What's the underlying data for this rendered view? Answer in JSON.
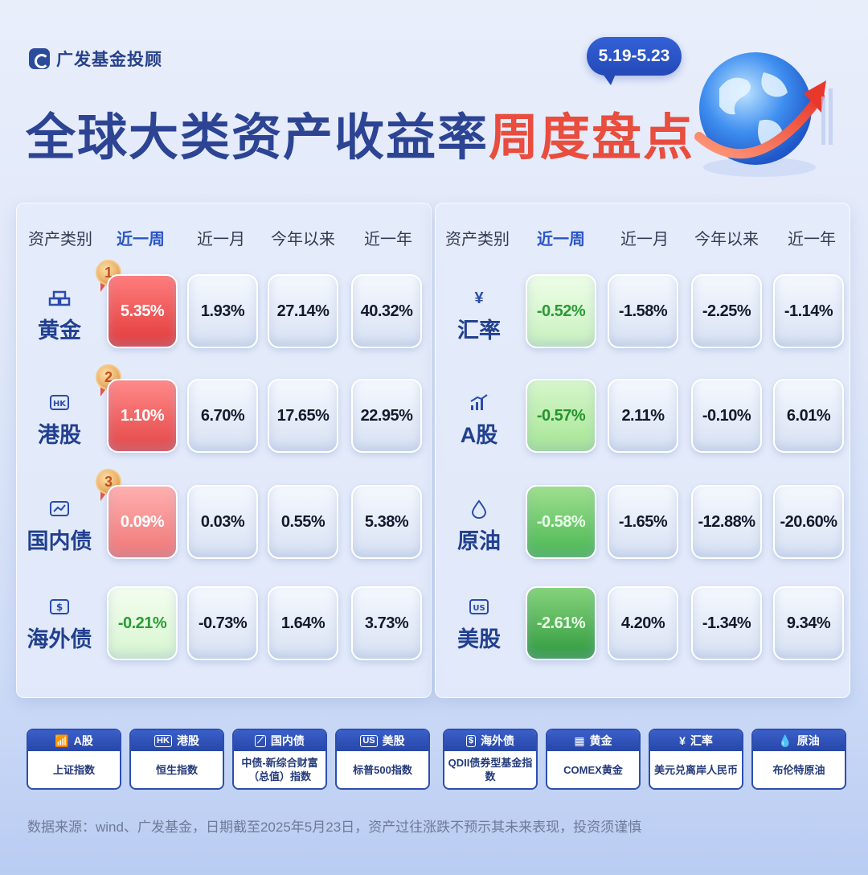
{
  "brand": {
    "name": "广发基金投顾"
  },
  "header": {
    "title_main": "全球大类资产收益率",
    "title_highlight": "周度盘点",
    "date_range": "5.19-5.23"
  },
  "colors": {
    "brand_blue": "#2c4493",
    "highlight_red": "#e84d3d",
    "up_red": "#e23a3a",
    "down_green": "#2f9a3e"
  },
  "columns": [
    "资产类别",
    "近一周",
    "近一月",
    "今年以来",
    "近一年"
  ],
  "chart_data": {
    "type": "table",
    "tables": [
      {
        "side": "left",
        "rows": [
          {
            "rank": "1",
            "icon": "gold-bar-icon",
            "asset": "黄金",
            "week": "5.35%",
            "month": "1.93%",
            "ytd": "27.14%",
            "year": "40.32%"
          },
          {
            "rank": "2",
            "icon": "hk-icon",
            "asset": "港股",
            "week": "1.10%",
            "month": "6.70%",
            "ytd": "17.65%",
            "year": "22.95%"
          },
          {
            "rank": "3",
            "icon": "trend-chart-icon",
            "asset": "国内债",
            "week": "0.09%",
            "month": "0.03%",
            "ytd": "0.55%",
            "year": "5.38%"
          },
          {
            "icon": "dollar-doc-icon",
            "asset": "海外债",
            "week": "-0.21%",
            "month": "-0.73%",
            "ytd": "1.64%",
            "year": "3.73%"
          }
        ]
      },
      {
        "side": "right",
        "rows": [
          {
            "icon": "yen-icon",
            "asset": "汇率",
            "week": "-0.52%",
            "month": "-1.58%",
            "ytd": "-2.25%",
            "year": "-1.14%"
          },
          {
            "icon": "bar-chart-up-icon",
            "asset": "A股",
            "week": "-0.57%",
            "month": "2.11%",
            "ytd": "-0.10%",
            "year": "6.01%"
          },
          {
            "icon": "oil-drop-icon",
            "asset": "原油",
            "week": "-0.58%",
            "month": "-1.65%",
            "ytd": "-12.88%",
            "year": "-20.60%"
          },
          {
            "icon": "us-icon",
            "asset": "美股",
            "week": "-2.61%",
            "month": "4.20%",
            "ytd": "-1.34%",
            "year": "9.34%"
          }
        ]
      }
    ]
  },
  "legend": [
    {
      "icon": "bar-chart-up-icon",
      "badge": "",
      "name": "A股",
      "index": "上证指数"
    },
    {
      "icon": "hk-icon",
      "badge": "HK",
      "name": "港股",
      "index": "恒生指数"
    },
    {
      "icon": "trend-chart-icon",
      "badge": "",
      "name": "国内债",
      "index": "中债-新综合财富（总值）指数"
    },
    {
      "icon": "us-icon",
      "badge": "US",
      "name": "美股",
      "index": "标普500指数"
    },
    {
      "icon": "dollar-doc-icon",
      "badge": "$",
      "name": "海外债",
      "index": "QDII债券型基金指数"
    },
    {
      "icon": "gold-bar-icon",
      "badge": "",
      "name": "黄金",
      "index": "COMEX黄金"
    },
    {
      "icon": "yen-icon",
      "badge": "¥",
      "name": "汇率",
      "index": "美元兑离岸人民币"
    },
    {
      "icon": "oil-drop-icon",
      "badge": "",
      "name": "原油",
      "index": "布伦特原油"
    }
  ],
  "footer": {
    "source": "数据来源：wind、广发基金，日期截至2025年5月23日，资产过往涨跌不预示其未来表现，投资须谨慎"
  }
}
